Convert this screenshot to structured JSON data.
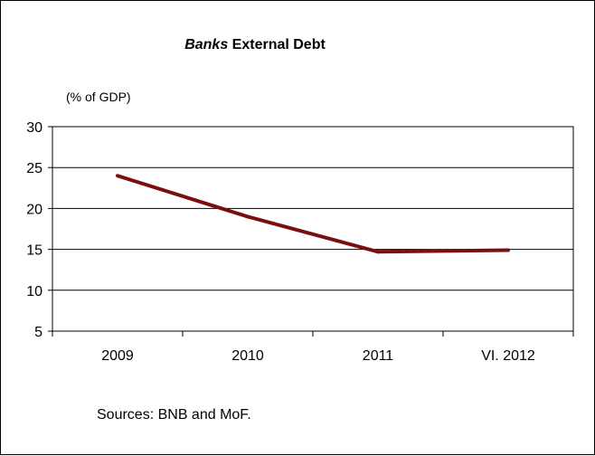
{
  "chart_data": {
    "type": "line",
    "title_italic": "Banks",
    "title_rest": " External Debt",
    "ylabel": "(% of GDP)",
    "xlabel": "",
    "categories": [
      "2009",
      "2010",
      "2011",
      "VI. 2012"
    ],
    "series": [
      {
        "values": [
          24.0,
          19.0,
          14.7,
          14.9
        ],
        "color": "#7b0f0f"
      }
    ],
    "ylim": [
      5,
      30
    ],
    "yticks": [
      5,
      10,
      15,
      20,
      25,
      30
    ],
    "grid": true,
    "legend": "none",
    "source": "Sources: BNB and MoF."
  }
}
